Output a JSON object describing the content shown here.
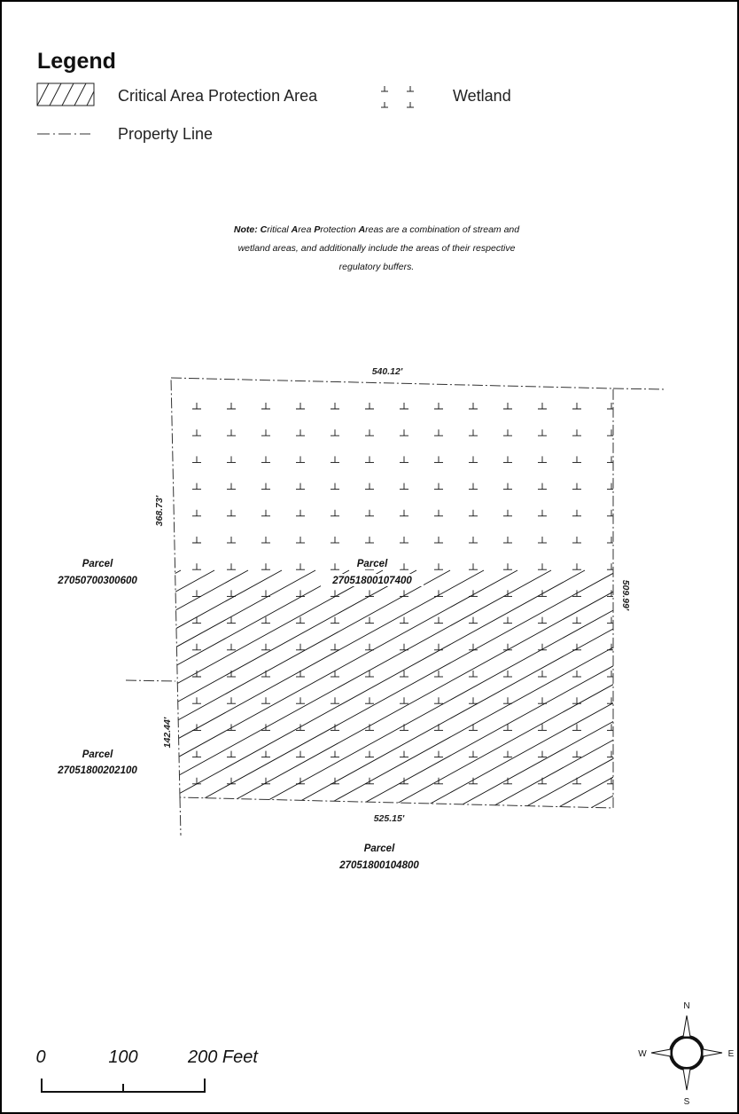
{
  "legend": {
    "title": "Legend",
    "items": [
      {
        "symbol": "diagonal-hatch",
        "label": "Critical Area Protection Area"
      },
      {
        "symbol": "wetland-marsh",
        "label": "Wetland"
      },
      {
        "symbol": "dash-dot-line",
        "label": "Property Line"
      }
    ]
  },
  "note": {
    "label": "Note:",
    "line1_parts": [
      {
        "text": "C",
        "bold": true
      },
      {
        "text": "ritical ",
        "bold": false
      },
      {
        "text": "A",
        "bold": true
      },
      {
        "text": "rea ",
        "bold": false
      },
      {
        "text": "P",
        "bold": true
      },
      {
        "text": "rotection ",
        "bold": false
      },
      {
        "text": "A",
        "bold": true
      },
      {
        "text": "reas are a combination of stream and",
        "bold": false
      }
    ],
    "line2": "wetland areas, and additionally include the areas of their respective",
    "line3": "regulatory buffers."
  },
  "dimensions": {
    "top": "540.12'",
    "bottom": "525.15'",
    "left_upper": "368.73'",
    "left_lower": "142.44'",
    "right": "509.99'"
  },
  "parcels": [
    {
      "id": "subject",
      "label": "Parcel",
      "number": "27051800107400"
    },
    {
      "id": "west-upper",
      "label": "Parcel",
      "number": "27050700300600"
    },
    {
      "id": "west-lower",
      "label": "Parcel",
      "number": "27051800202100"
    },
    {
      "id": "south",
      "label": "Parcel",
      "number": "27051800104800"
    }
  ],
  "scale_bar": {
    "labels": [
      "0",
      "100",
      "200 Feet"
    ],
    "values": [
      0,
      100,
      200
    ],
    "unit": "Feet"
  },
  "north_arrow": {
    "n": "N",
    "e": "E",
    "s": "S",
    "w": "W"
  },
  "colors": {
    "frame": "#000000",
    "ink": "#111111",
    "background": "#ffffff"
  }
}
